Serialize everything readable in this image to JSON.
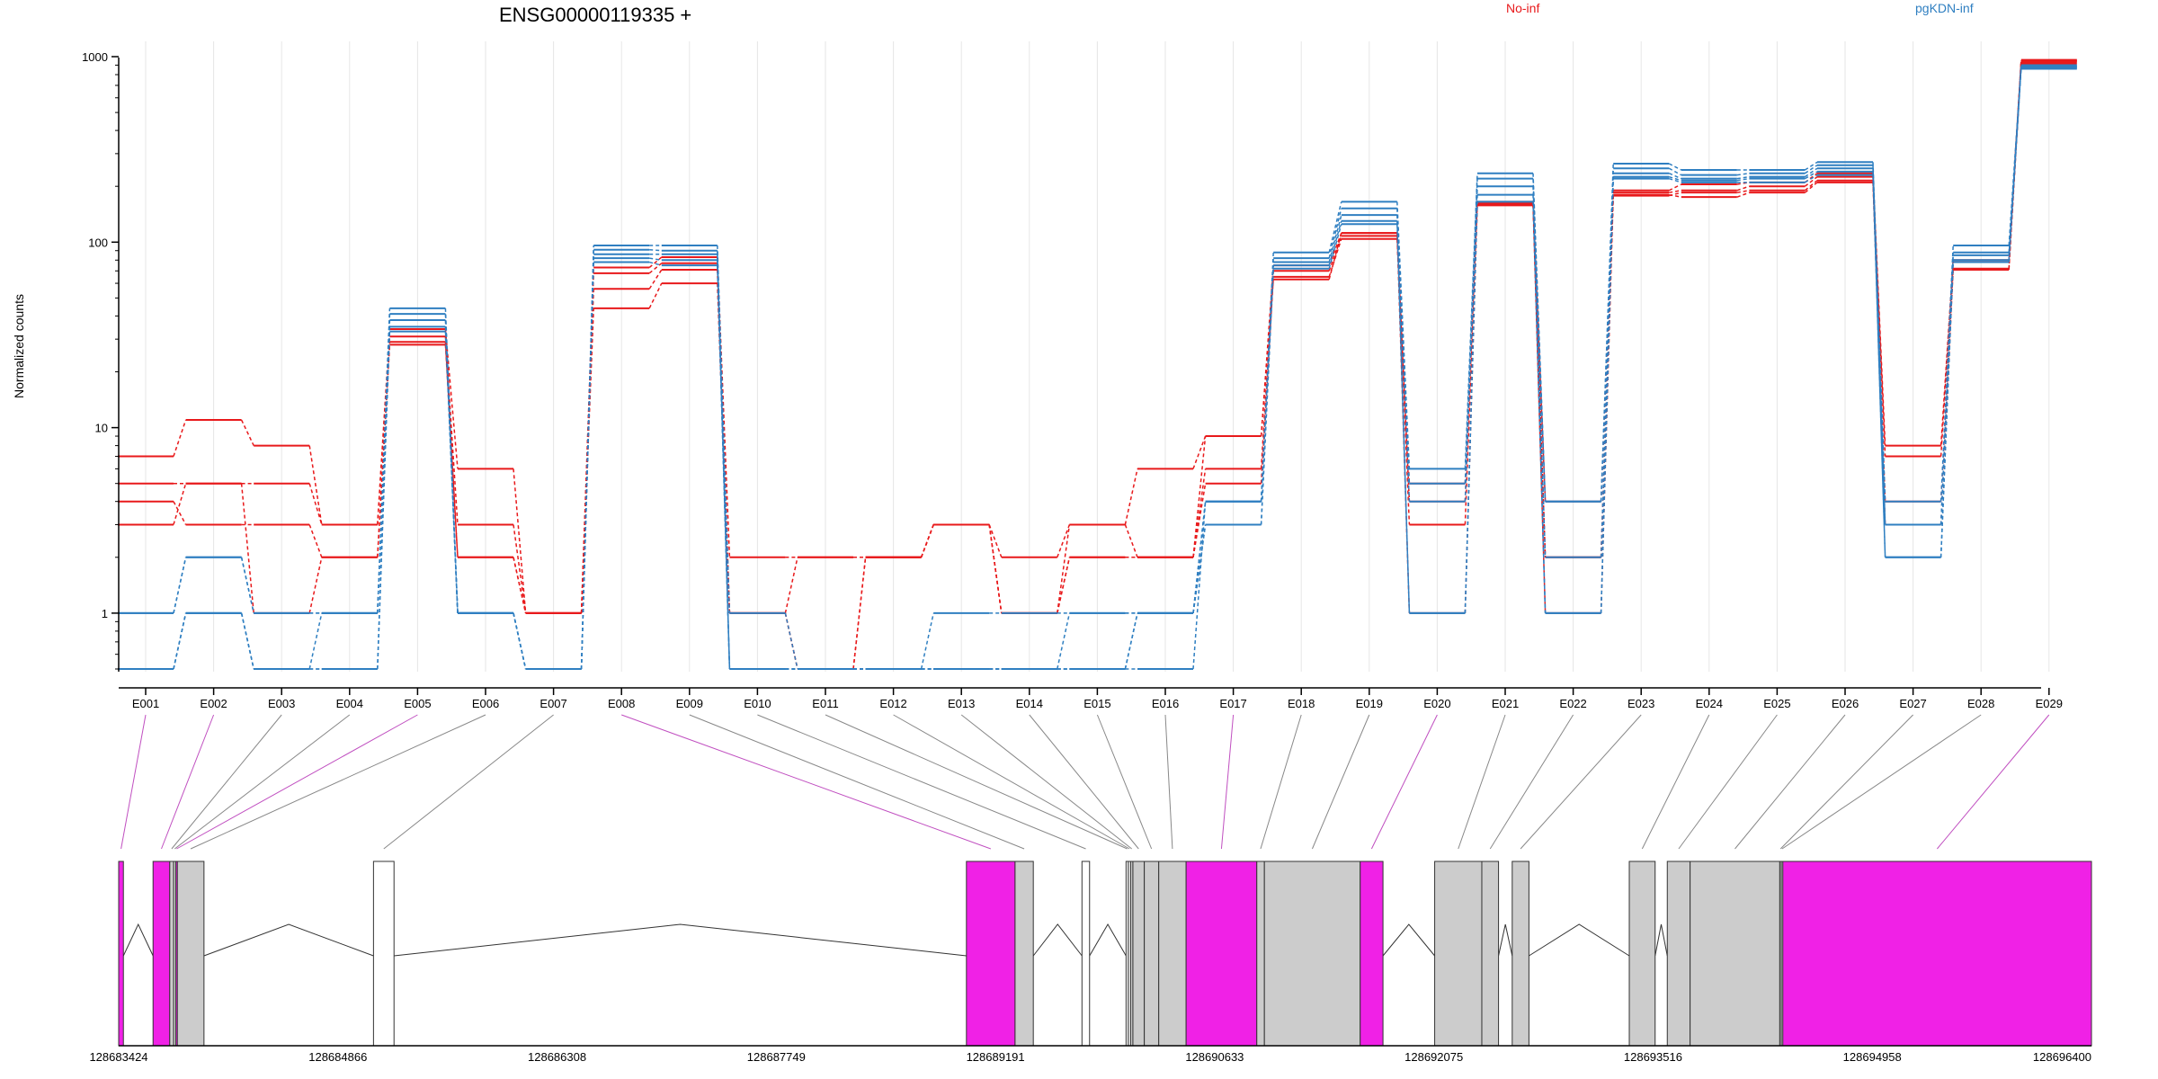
{
  "colors": {
    "no_inf": "#e8191b",
    "pgkdn_inf": "#2f7fc1",
    "exon_significant": "#f021e6",
    "exon_normal": "#cccccc",
    "exon_empty": "#ffffff",
    "connector_significant": "#c04fc0",
    "connector_normal": "#888888",
    "grid": "#e6e6e6"
  },
  "chart_data": {
    "type": "line",
    "title": "ENSG00000119335 +",
    "ylabel": "Normalized counts",
    "yscale": "log",
    "ylim": [
      0.5,
      1000
    ],
    "yticks": [
      "1",
      "10",
      "100",
      "1000"
    ],
    "legend": [
      {
        "name": "No-inf",
        "color_key": "no_inf"
      },
      {
        "name": "pgKDN-inf",
        "color_key": "pgkdn_inf"
      }
    ],
    "legend_placement": "top-right",
    "categories": [
      "E001",
      "E002",
      "E003",
      "E004",
      "E005",
      "E006",
      "E007",
      "E008",
      "E009",
      "E010",
      "E011",
      "E012",
      "E013",
      "E014",
      "E015",
      "E016",
      "E017",
      "E018",
      "E019",
      "E020",
      "E021",
      "E022",
      "E023",
      "E024",
      "E025",
      "E026",
      "E027",
      "E028",
      "E029"
    ],
    "series": [
      {
        "group": "no_inf",
        "values": [
          7,
          11,
          8,
          3,
          34,
          6,
          1,
          73,
          83,
          2,
          2,
          2,
          3,
          2,
          3,
          6,
          9,
          75,
          112,
          5,
          165,
          4,
          190,
          205,
          210,
          235,
          8,
          80,
          960
        ]
      },
      {
        "group": "no_inf",
        "values": [
          5,
          5,
          5,
          3,
          31,
          3,
          1,
          56,
          71,
          1,
          2,
          2,
          3,
          1,
          2,
          2,
          6,
          70,
          108,
          4,
          162,
          2,
          185,
          190,
          200,
          225,
          7,
          78,
          950
        ]
      },
      {
        "group": "no_inf",
        "values": [
          4,
          3,
          3,
          2,
          29,
          2,
          1,
          44,
          60,
          1,
          0.5,
          2,
          3,
          1,
          2,
          2,
          5,
          65,
          104,
          3,
          158,
          1,
          180,
          175,
          185,
          210,
          4,
          72,
          940
        ]
      },
      {
        "group": "no_inf",
        "values": [
          3,
          5,
          1,
          2,
          28,
          2,
          1,
          68,
          77,
          1,
          0.5,
          2,
          3,
          1,
          3,
          2,
          9,
          63,
          112,
          1,
          160,
          2,
          178,
          185,
          190,
          215,
          3,
          71,
          920
        ]
      },
      {
        "group": "pgkdn_inf",
        "values": [
          1,
          2,
          1,
          1,
          44,
          1,
          0.5,
          96,
          96,
          1,
          0.5,
          0.5,
          1,
          1,
          1,
          1,
          4,
          88,
          165,
          6,
          235,
          4,
          265,
          245,
          245,
          270,
          4,
          96,
          900
        ]
      },
      {
        "group": "pgkdn_inf",
        "values": [
          1,
          2,
          1,
          1,
          41,
          1,
          0.5,
          91,
          90,
          0.5,
          0.5,
          0.5,
          0.5,
          0.5,
          1,
          1,
          4,
          82,
          152,
          5,
          220,
          4,
          250,
          230,
          235,
          260,
          3,
          88,
          890
        ]
      },
      {
        "group": "pgkdn_inf",
        "values": [
          0.5,
          1,
          0.5,
          0.5,
          38,
          1,
          0.5,
          86,
          86,
          0.5,
          0.5,
          0.5,
          0.5,
          0.5,
          0.5,
          0.5,
          4,
          78,
          140,
          4,
          200,
          2,
          235,
          220,
          225,
          250,
          3,
          85,
          880
        ]
      },
      {
        "group": "pgkdn_inf",
        "values": [
          0.5,
          1,
          0.5,
          1,
          35,
          1,
          0.5,
          82,
          80,
          0.5,
          0.5,
          0.5,
          0.5,
          0.5,
          0.5,
          1,
          3,
          75,
          130,
          1,
          180,
          1,
          225,
          215,
          220,
          240,
          2,
          80,
          870
        ]
      },
      {
        "group": "pgkdn_inf",
        "values": [
          0.5,
          1,
          0.5,
          0.5,
          33,
          1,
          0.5,
          78,
          75,
          0.5,
          0.5,
          0.5,
          0.5,
          0.5,
          0.5,
          1,
          3,
          72,
          125,
          1,
          165,
          1,
          220,
          210,
          210,
          230,
          2,
          78,
          860
        ]
      }
    ]
  },
  "gene_model": {
    "coord_min": 128683424,
    "coord_max": 128696400,
    "coord_labels": [
      "128683424",
      "128684866",
      "128686308",
      "128687749",
      "128689191",
      "128690633",
      "128692075",
      "128693516",
      "128694958",
      "128696400"
    ],
    "exons": [
      {
        "id": "E001",
        "start": 128683424,
        "end": 128683455,
        "status": "significant"
      },
      {
        "id": "E002",
        "start": 128683650,
        "end": 128683760,
        "status": "significant"
      },
      {
        "id": "E003",
        "start": 128683760,
        "end": 128683785,
        "status": "normal"
      },
      {
        "id": "E004",
        "start": 128683785,
        "end": 128683800,
        "status": "normal"
      },
      {
        "id": "E005",
        "start": 128683800,
        "end": 128683810,
        "status": "significant"
      },
      {
        "id": "E006",
        "start": 128683810,
        "end": 128683985,
        "status": "normal"
      },
      {
        "id": "E007",
        "start": 128685100,
        "end": 128685235,
        "status": "empty"
      },
      {
        "id": "E008",
        "start": 128689000,
        "end": 128689320,
        "status": "significant"
      },
      {
        "id": "E009",
        "start": 128689320,
        "end": 128689440,
        "status": "normal"
      },
      {
        "id": "E010",
        "start": 128689760,
        "end": 128689810,
        "status": "empty"
      },
      {
        "id": "E011",
        "start": 128690050,
        "end": 128690065,
        "status": "empty"
      },
      {
        "id": "E012",
        "start": 128690065,
        "end": 128690080,
        "status": "empty"
      },
      {
        "id": "E013",
        "start": 128690080,
        "end": 128690095,
        "status": "normal"
      },
      {
        "id": "E014",
        "start": 128690095,
        "end": 128690170,
        "status": "normal"
      },
      {
        "id": "E015",
        "start": 128690170,
        "end": 128690265,
        "status": "normal"
      },
      {
        "id": "E016",
        "start": 128690265,
        "end": 128690445,
        "status": "normal"
      },
      {
        "id": "E017",
        "start": 128690445,
        "end": 128690910,
        "status": "significant"
      },
      {
        "id": "E018",
        "start": 128690910,
        "end": 128690960,
        "status": "normal"
      },
      {
        "id": "E019",
        "start": 128690960,
        "end": 128691590,
        "status": "normal"
      },
      {
        "id": "E020",
        "start": 128691590,
        "end": 128691740,
        "status": "significant"
      },
      {
        "id": "E021",
        "start": 128692080,
        "end": 128692390,
        "status": "normal"
      },
      {
        "id": "E022",
        "start": 128692390,
        "end": 128692500,
        "status": "normal"
      },
      {
        "id": "E023",
        "start": 128692590,
        "end": 128692700,
        "status": "normal"
      },
      {
        "id": "E024",
        "start": 128693360,
        "end": 128693530,
        "status": "normal"
      },
      {
        "id": "E025",
        "start": 128693610,
        "end": 128693760,
        "status": "normal"
      },
      {
        "id": "E026",
        "start": 128693760,
        "end": 128694350,
        "status": "normal"
      },
      {
        "id": "E027",
        "start": 128694350,
        "end": 128694360,
        "status": "normal"
      },
      {
        "id": "E028",
        "start": 128694360,
        "end": 128694370,
        "status": "normal"
      },
      {
        "id": "E029",
        "start": 128694370,
        "end": 128696400,
        "status": "significant"
      }
    ]
  }
}
